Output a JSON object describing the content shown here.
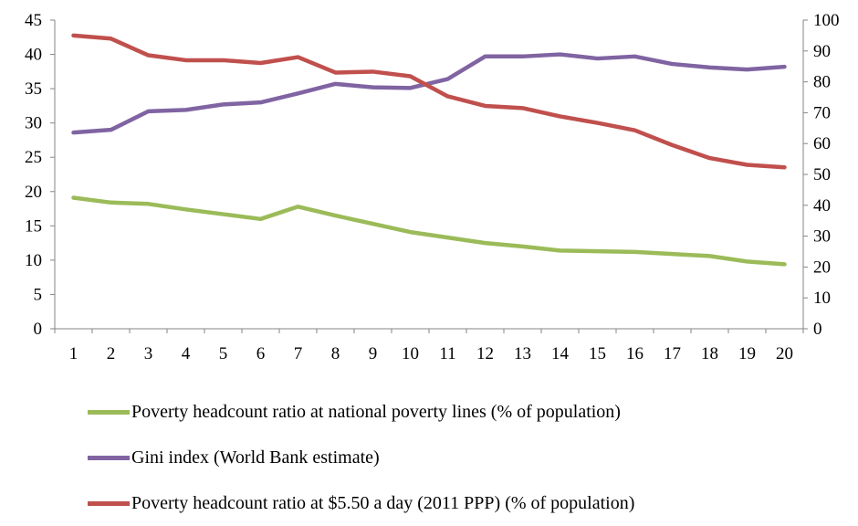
{
  "chart_data": {
    "type": "line",
    "x": [
      1,
      2,
      3,
      4,
      5,
      6,
      7,
      8,
      9,
      10,
      11,
      12,
      13,
      14,
      15,
      16,
      17,
      18,
      19,
      20
    ],
    "x_tick_labels": [
      "1",
      "2",
      "3",
      "4",
      "5",
      "6",
      "7",
      "8",
      "9",
      "10",
      "11",
      "12",
      "13",
      "14",
      "15",
      "16",
      "17",
      "18",
      "19",
      "20"
    ],
    "y_left": {
      "lim": [
        0,
        45
      ],
      "ticks": [
        0,
        5,
        10,
        15,
        20,
        25,
        30,
        35,
        40,
        45
      ],
      "tick_labels": [
        "0",
        "5",
        "10",
        "15",
        "20",
        "25",
        "30",
        "35",
        "40",
        "45"
      ]
    },
    "y_right": {
      "lim": [
        0,
        100
      ],
      "ticks": [
        0,
        10,
        20,
        30,
        40,
        50,
        60,
        70,
        80,
        90,
        100
      ],
      "tick_labels": [
        "0",
        "10",
        "20",
        "30",
        "40",
        "50",
        "60",
        "70",
        "80",
        "90",
        "100"
      ]
    },
    "grid": false,
    "legend_position": "bottom",
    "series": [
      {
        "name": "Poverty headcount ratio at national poverty lines (% of population)",
        "axis": "left",
        "color": "#9BBB59",
        "values": [
          19.1,
          18.4,
          18.2,
          17.4,
          16.7,
          16.0,
          17.8,
          16.5,
          15.3,
          14.1,
          13.3,
          12.5,
          12.0,
          11.4,
          11.3,
          11.2,
          10.9,
          10.6,
          9.8,
          9.4
        ]
      },
      {
        "name": "Gini index (World Bank estimate)",
        "axis": "left",
        "color": "#8064A2",
        "values": [
          28.6,
          29.0,
          31.7,
          31.9,
          32.7,
          33.0,
          34.3,
          35.7,
          35.2,
          35.1,
          36.4,
          39.7,
          39.7,
          40.0,
          39.4,
          39.7,
          38.6,
          38.1,
          37.8,
          38.2
        ]
      },
      {
        "name": "Poverty headcount ratio at $5.50 a day (2011 PPP) (% of population)",
        "axis": "right",
        "color": "#C0504D",
        "values": [
          95.0,
          94.0,
          88.6,
          87.0,
          87.0,
          86.1,
          88.0,
          83.0,
          83.3,
          81.8,
          75.3,
          72.2,
          71.5,
          68.8,
          66.7,
          64.3,
          59.5,
          55.3,
          53.1,
          52.3
        ]
      }
    ]
  }
}
